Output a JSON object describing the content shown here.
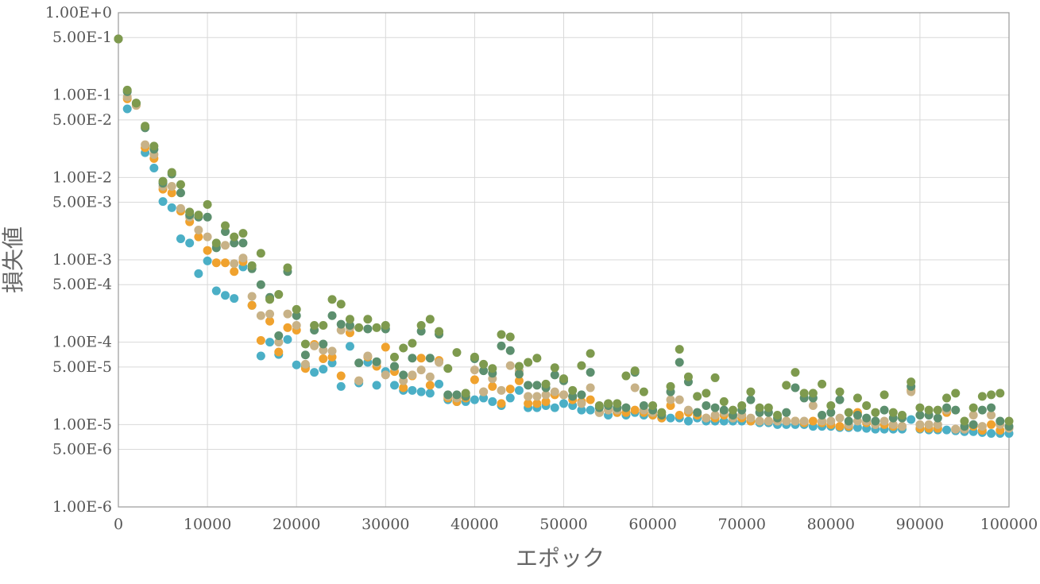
{
  "chart_data": {
    "type": "scatter",
    "title": "",
    "xlabel": "エポック",
    "ylabel": "損失値",
    "x_scale": "linear",
    "y_scale": "log",
    "xlim": [
      0,
      100000
    ],
    "ylim": [
      1e-06,
      1
    ],
    "grid": true,
    "legend": "none",
    "x_ticks": [
      {
        "value": 0,
        "label": "0"
      },
      {
        "value": 10000,
        "label": "10000"
      },
      {
        "value": 20000,
        "label": "20000"
      },
      {
        "value": 30000,
        "label": "30000"
      },
      {
        "value": 40000,
        "label": "40000"
      },
      {
        "value": 50000,
        "label": "50000"
      },
      {
        "value": 60000,
        "label": "60000"
      },
      {
        "value": 70000,
        "label": "70000"
      },
      {
        "value": 80000,
        "label": "80000"
      },
      {
        "value": 90000,
        "label": "90000"
      },
      {
        "value": 100000,
        "label": "100000"
      }
    ],
    "y_ticks": [
      {
        "value": 1,
        "label": "1.00E+0"
      },
      {
        "value": 0.5,
        "label": "5.00E-1"
      },
      {
        "value": 0.1,
        "label": "1.00E-1"
      },
      {
        "value": 0.05,
        "label": "5.00E-2"
      },
      {
        "value": 0.01,
        "label": "1.00E-2"
      },
      {
        "value": 0.005,
        "label": "5.00E-3"
      },
      {
        "value": 0.001,
        "label": "1.00E-3"
      },
      {
        "value": 0.0005,
        "label": "5.00E-4"
      },
      {
        "value": 0.0001,
        "label": "1.00E-4"
      },
      {
        "value": 5e-05,
        "label": "5.00E-5"
      },
      {
        "value": 1e-05,
        "label": "1.00E-5"
      },
      {
        "value": 5e-06,
        "label": "5.00E-6"
      },
      {
        "value": 1e-06,
        "label": "1.00E-6"
      }
    ],
    "x": [
      0,
      1000,
      2000,
      3000,
      4000,
      5000,
      6000,
      7000,
      8000,
      9000,
      10000,
      11000,
      12000,
      13000,
      14000,
      15000,
      16000,
      17000,
      18000,
      19000,
      20000,
      21000,
      22000,
      23000,
      24000,
      25000,
      26000,
      27000,
      28000,
      29000,
      30000,
      31000,
      32000,
      33000,
      34000,
      35000,
      36000,
      37000,
      38000,
      39000,
      40000,
      41000,
      42000,
      43000,
      44000,
      45000,
      46000,
      47000,
      48000,
      49000,
      50000,
      51000,
      52000,
      53000,
      54000,
      55000,
      56000,
      57000,
      58000,
      59000,
      60000,
      61000,
      62000,
      63000,
      64000,
      65000,
      66000,
      67000,
      68000,
      69000,
      70000,
      71000,
      72000,
      73000,
      74000,
      75000,
      76000,
      77000,
      78000,
      79000,
      80000,
      81000,
      82000,
      83000,
      84000,
      85000,
      86000,
      87000,
      88000,
      89000,
      90000,
      91000,
      92000,
      93000,
      94000,
      95000,
      96000,
      97000,
      98000,
      99000,
      100000
    ],
    "series": [
      {
        "color": "#4bafc6",
        "values": [
          0.48,
          0.068,
          0.078,
          0.02,
          0.013,
          0.0051,
          0.0043,
          0.0018,
          0.0016,
          0.00068,
          0.00097,
          0.00042,
          0.00037,
          0.00034,
          0.00082,
          0.00028,
          6.8e-05,
          0.0001,
          7.1e-05,
          0.000108,
          5.3e-05,
          5.1e-05,
          4.3e-05,
          4.7e-05,
          5.6e-05,
          2.9e-05,
          8.9e-05,
          3.2e-05,
          5.7e-05,
          3e-05,
          4.4e-05,
          3e-05,
          2.6e-05,
          2.6e-05,
          2.5e-05,
          2.4e-05,
          3.1e-05,
          2e-05,
          1.9e-05,
          1.9e-05,
          2e-05,
          2.1e-05,
          1.9e-05,
          1.7e-05,
          2.1e-05,
          2.6e-05,
          1.6e-05,
          1.6e-05,
          1.7e-05,
          1.6e-05,
          1.8e-05,
          1.7e-05,
          1.5e-05,
          1.5e-05,
          1.4e-05,
          1.3e-05,
          1.4e-05,
          1.3e-05,
          1.4e-05,
          1.3e-05,
          1.3e-05,
          1.2e-05,
          1.2e-05,
          1.2e-05,
          1.1e-05,
          1.2e-05,
          1.1e-05,
          1.1e-05,
          1.1e-05,
          1.1e-05,
          1.1e-05,
          1.1e-05,
          1.05e-05,
          1.05e-05,
          1e-05,
          1e-05,
          1e-05,
          1e-05,
          9.5e-06,
          9.5e-06,
          9.5e-06,
          9.2e-06,
          9.2e-06,
          9.2e-06,
          9e-06,
          8.8e-06,
          8.8e-06,
          8.8e-06,
          8.8e-06,
          1.15e-05,
          8.8e-06,
          8.6e-06,
          8.6e-06,
          8.6e-06,
          8.4e-06,
          8.2e-06,
          8.2e-06,
          8e-06,
          7.8e-06,
          7.8e-06,
          7.8e-06
        ]
      },
      {
        "color": "#f0a22e",
        "values": [
          0.48,
          0.09,
          0.075,
          0.023,
          0.017,
          0.0072,
          0.0065,
          0.0039,
          0.0029,
          0.0019,
          0.0013,
          0.00092,
          0.00092,
          0.00072,
          0.00095,
          0.00028,
          0.000105,
          0.00018,
          7.6e-05,
          0.00015,
          0.00014,
          4.8e-05,
          9.4e-05,
          6.3e-05,
          6.6e-05,
          3.9e-05,
          0.00013,
          3.4e-05,
          6.6e-05,
          5.1e-05,
          8.7e-05,
          4.4e-05,
          2.8e-05,
          3.9e-05,
          6.4e-05,
          3e-05,
          6e-05,
          2.1e-05,
          1.9e-05,
          2.1e-05,
          3.5e-05,
          2.5e-05,
          2.9e-05,
          1.8e-05,
          2.7e-05,
          3.4e-05,
          1.8e-05,
          1.8e-05,
          1.9e-05,
          2.3e-05,
          2.3e-05,
          2e-05,
          1.9e-05,
          2e-05,
          1.4e-05,
          1.5e-05,
          1.4e-05,
          1.4e-05,
          1.5e-05,
          1.4e-05,
          1.3e-05,
          1.2e-05,
          1.7e-05,
          1.3e-05,
          1.4e-05,
          1.3e-05,
          1.2e-05,
          1.2e-05,
          1.3e-05,
          1.2e-05,
          1.2e-05,
          1.1e-05,
          1.1e-05,
          1.1e-05,
          1.1e-05,
          1.1e-05,
          1.1e-05,
          1.05e-05,
          1.1e-05,
          1.05e-05,
          1e-05,
          9.5e-06,
          9.5e-06,
          1.4e-05,
          1.05e-05,
          1e-05,
          1e-05,
          9.5e-06,
          9.5e-06,
          2.6e-05,
          9e-06,
          9e-06,
          9e-06,
          1.4e-05,
          8.8e-06,
          8.8e-06,
          9.5e-06,
          8.5e-06,
          1e-05,
          8.5e-06,
          9.2e-06
        ]
      },
      {
        "color": "#c8b287",
        "values": [
          0.48,
          0.095,
          0.075,
          0.025,
          0.019,
          0.0078,
          0.0078,
          0.0042,
          0.0033,
          0.0023,
          0.0019,
          0.0015,
          0.0015,
          0.0009,
          0.00105,
          0.00036,
          0.00021,
          0.00022,
          0.0001,
          0.00022,
          0.00016,
          5.4e-05,
          9e-05,
          8e-05,
          7.8e-05,
          0.00014,
          0.00015,
          3.4e-05,
          6.8e-05,
          5.6e-05,
          4e-05,
          5e-05,
          3.4e-05,
          4e-05,
          4.6e-05,
          3.8e-05,
          5.7e-05,
          2.2e-05,
          2.1e-05,
          2.2e-05,
          4.6e-05,
          2.5e-05,
          3.6e-05,
          2.6e-05,
          5.2e-05,
          4.5e-05,
          2.2e-05,
          2.2e-05,
          2.3e-05,
          2.5e-05,
          2.3e-05,
          2.2e-05,
          1.8e-05,
          2.8e-05,
          1.4e-05,
          1.5e-05,
          1.5e-05,
          1.6e-05,
          2.8e-05,
          1.5e-05,
          1.4e-05,
          1.3e-05,
          2e-05,
          2e-05,
          1.5e-05,
          1.4e-05,
          1.2e-05,
          1.3e-05,
          1.4e-05,
          1.2e-05,
          1.3e-05,
          1.2e-05,
          1.1e-05,
          1.1e-05,
          1.1e-05,
          1.1e-05,
          1.1e-05,
          1.1e-05,
          1.7e-05,
          1.1e-05,
          1.1e-05,
          1.2e-05,
          1e-05,
          1.1e-05,
          1.1e-05,
          1e-05,
          1.1e-05,
          1e-05,
          9.5e-06,
          2.5e-05,
          1e-05,
          1e-05,
          1e-05,
          1.5e-05,
          8.8e-06,
          8.8e-06,
          1.3e-05,
          9.5e-06,
          1.3e-05,
          1e-05,
          9e-06
        ]
      },
      {
        "color": "#5c8f6e",
        "values": [
          0.48,
          0.11,
          0.08,
          0.04,
          0.022,
          0.0085,
          0.011,
          0.0065,
          0.0035,
          0.0033,
          0.0033,
          0.0014,
          0.0022,
          0.0016,
          0.0016,
          0.00078,
          0.0005,
          0.00035,
          0.00012,
          0.00072,
          0.00021,
          7e-05,
          0.00014,
          9.5e-05,
          0.00021,
          0.000165,
          0.00016,
          5.6e-05,
          0.000145,
          5.8e-05,
          0.000145,
          5.1e-05,
          4e-05,
          6.4e-05,
          0.000136,
          6.4e-05,
          0.000125,
          2.3e-05,
          2.3e-05,
          2.2e-05,
          6.3e-05,
          4.5e-05,
          4.2e-05,
          9e-05,
          7.9e-05,
          4.1e-05,
          3e-05,
          3e-05,
          2.8e-05,
          4e-05,
          3.4e-05,
          2.2e-05,
          2.3e-05,
          4.3e-05,
          1.6e-05,
          1.7e-05,
          1.6e-05,
          1.6e-05,
          4.3e-05,
          1.7e-05,
          1.5e-05,
          1.3e-05,
          2.5e-05,
          5.7e-05,
          3.3e-05,
          1.4e-05,
          1.7e-05,
          1.6e-05,
          1.5e-05,
          1.3e-05,
          1.5e-05,
          2e-05,
          1.4e-05,
          1.4e-05,
          1.2e-05,
          1.4e-05,
          2.8e-05,
          2.1e-05,
          2.1e-05,
          1.3e-05,
          1.4e-05,
          2e-05,
          1.1e-05,
          1.3e-05,
          1.2e-05,
          1.1e-05,
          1.5e-05,
          1.2e-05,
          1.2e-05,
          2.9e-05,
          1.3e-05,
          1.3e-05,
          1.2e-05,
          1.6e-05,
          1.5e-05,
          9.5e-06,
          1e-05,
          1.5e-05,
          1.6e-05,
          1.1e-05,
          9.5e-06
        ]
      },
      {
        "color": "#7e9a4e",
        "values": [
          0.48,
          0.115,
          0.08,
          0.042,
          0.024,
          0.009,
          0.0115,
          0.0082,
          0.0038,
          0.0035,
          0.0047,
          0.0016,
          0.0026,
          0.0019,
          0.0021,
          0.00085,
          0.0012,
          0.00033,
          0.00038,
          0.0008,
          0.00025,
          9.5e-05,
          0.00016,
          0.00016,
          0.00033,
          0.00029,
          0.00019,
          0.00015,
          0.00019,
          0.00015,
          0.00016,
          6.6e-05,
          8.5e-05,
          9.7e-05,
          0.00016,
          0.00019,
          0.000135,
          4.8e-05,
          7.5e-05,
          2.4e-05,
          6.6e-05,
          5.4e-05,
          4.8e-05,
          0.000124,
          0.000116,
          5.1e-05,
          5.7e-05,
          6.4e-05,
          3.1e-05,
          4.9e-05,
          3.6e-05,
          2.6e-05,
          5.2e-05,
          7.3e-05,
          1.7e-05,
          1.8e-05,
          1.8e-05,
          3.9e-05,
          4.5e-05,
          2.5e-05,
          1.7e-05,
          1.4e-05,
          2.9e-05,
          8.2e-05,
          3.8e-05,
          2.2e-05,
          2.4e-05,
          3.7e-05,
          1.9e-05,
          1.5e-05,
          1.7e-05,
          2.5e-05,
          1.6e-05,
          1.6e-05,
          1.3e-05,
          3e-05,
          4.3e-05,
          2.4e-05,
          2.4e-05,
          3.1e-05,
          1.7e-05,
          2.5e-05,
          1.4e-05,
          2.1e-05,
          1.7e-05,
          1.4e-05,
          2.3e-05,
          1.4e-05,
          1.3e-05,
          3.3e-05,
          1.6e-05,
          1.5e-05,
          1.5e-05,
          2.1e-05,
          2.4e-05,
          1.1e-05,
          1.6e-05,
          2.2e-05,
          2.3e-05,
          2.4e-05,
          1.1e-05
        ]
      }
    ]
  }
}
